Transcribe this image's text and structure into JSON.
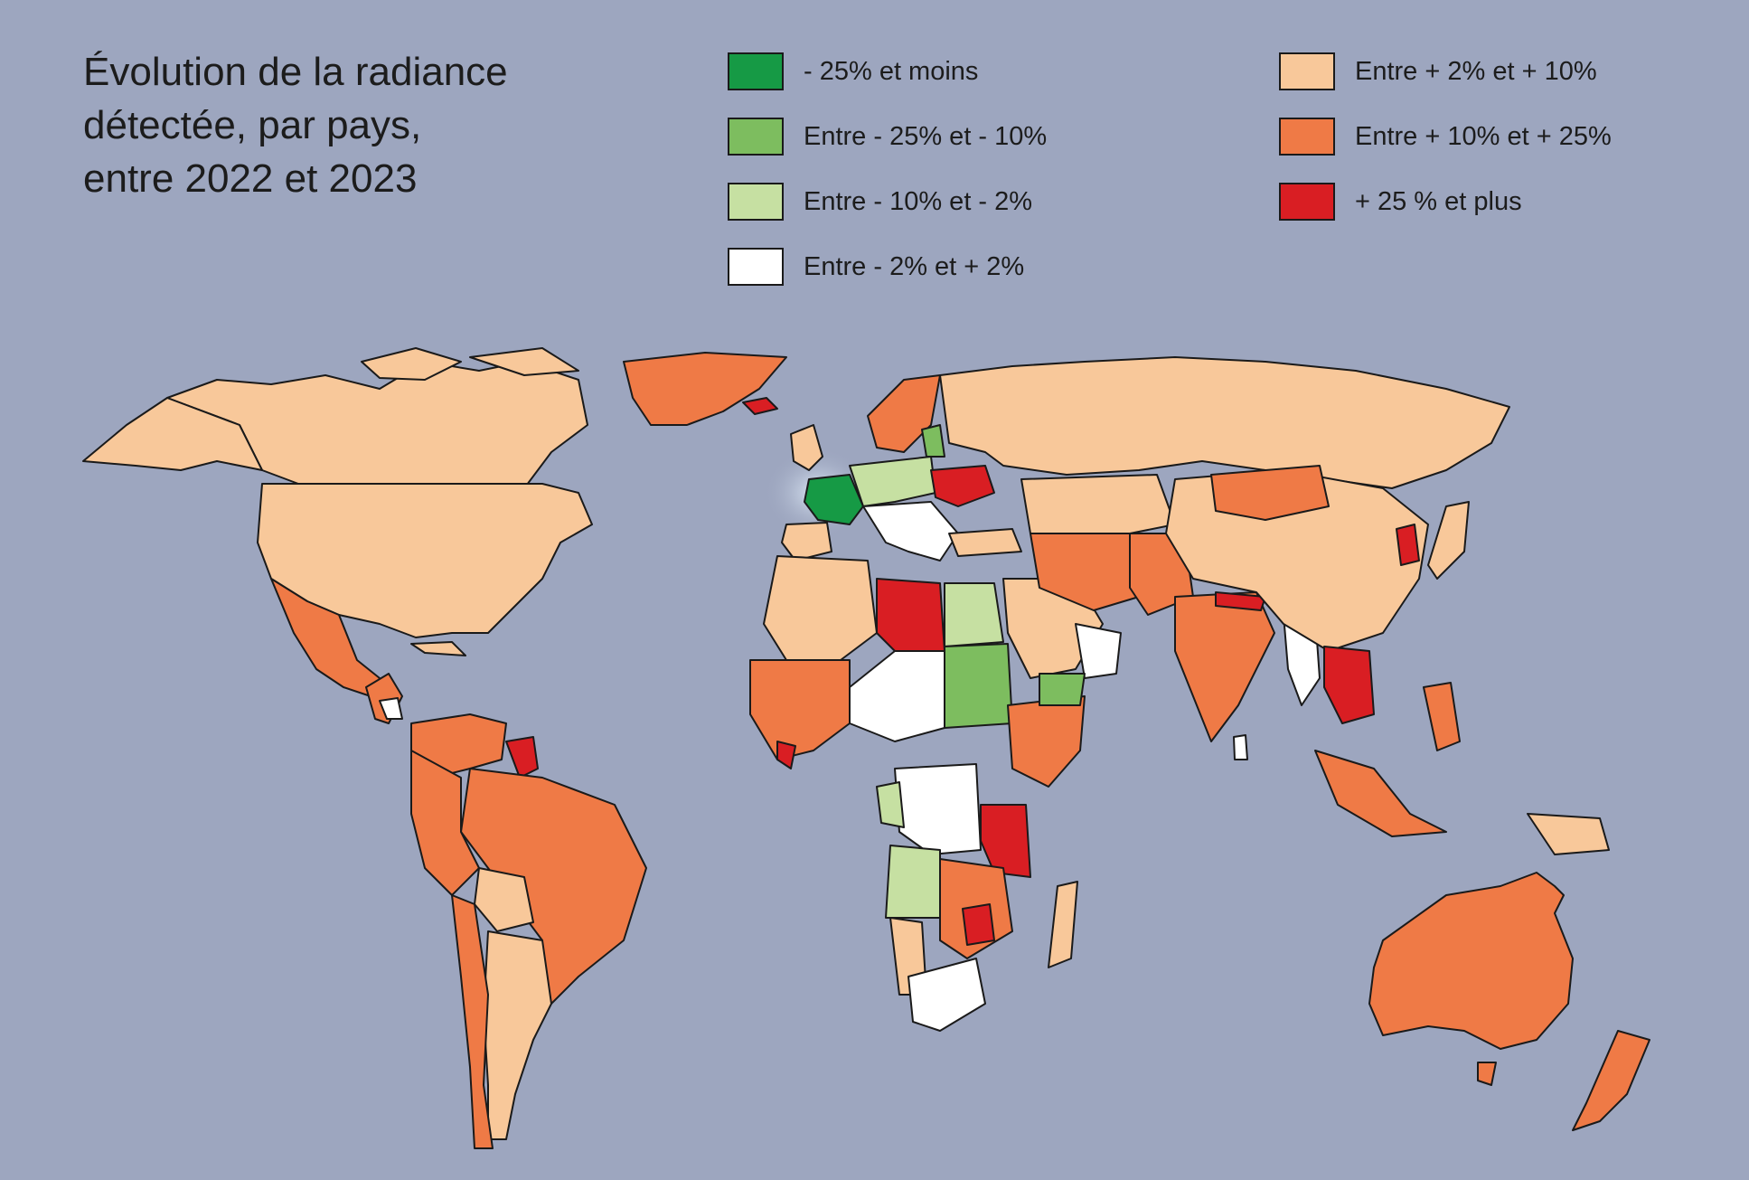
{
  "title": {
    "line1": "Évolution de la radiance",
    "line2": "détectée, par pays,",
    "line3": "entre 2022 et 2023"
  },
  "legend": [
    {
      "label": "- 25% et moins",
      "color": "#169a45"
    },
    {
      "label": "Entre - 25% et - 10%",
      "color": "#7dbd5f"
    },
    {
      "label": "Entre - 10% et - 2%",
      "color": "#c6e0a2"
    },
    {
      "label": "Entre - 2% et + 2%",
      "color": "#ffffff"
    },
    {
      "label": "Entre + 2% et + 10%",
      "color": "#f8c89a"
    },
    {
      "label": "Entre + 10% et + 25%",
      "color": "#ef7a46"
    },
    {
      "label": "+ 25 % et plus",
      "color": "#d91e23"
    }
  ],
  "colors": {
    "ocean": "#9da6bf",
    "border": "#1a1a1a"
  }
}
